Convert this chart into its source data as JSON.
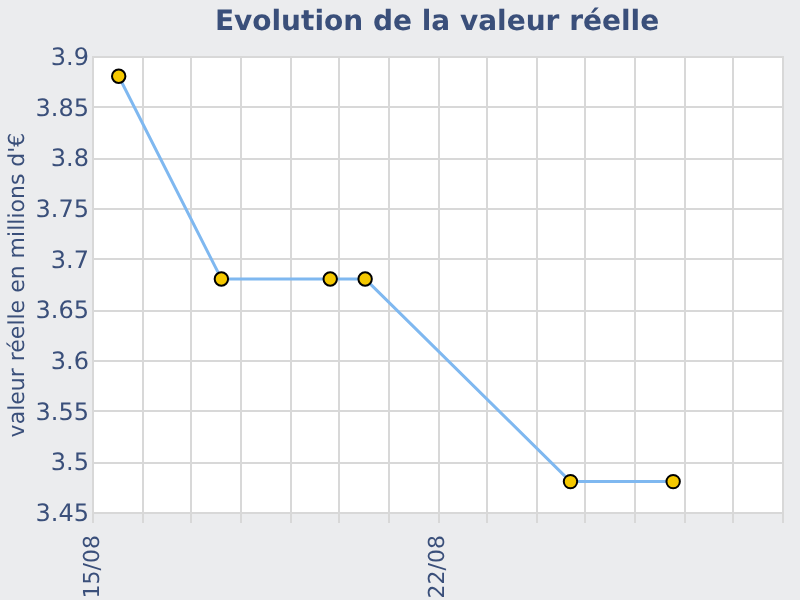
{
  "chart_data": {
    "type": "line",
    "title": "Evolution de la valeur réelle",
    "ylabel": "valeur réelle en millions d'€",
    "x": [
      "--08-15T13:00",
      "--08-17T15:00",
      "--08-19T20:00",
      "--08-20T13:00",
      "--08-24T17:00",
      "--08-26T19:00"
    ],
    "series": [
      {
        "color": "#7fb8f0",
        "values": [
          3.88,
          3.68,
          3.68,
          3.68,
          3.48,
          3.48
        ]
      }
    ],
    "xlim": [
      "--08-15",
      "--08-29"
    ],
    "xticks": [
      {
        "value": "--08-15",
        "label": "15/08"
      },
      {
        "value": "--08-16",
        "label": null
      },
      {
        "value": "--08-17",
        "label": null
      },
      {
        "value": "--08-18",
        "label": null
      },
      {
        "value": "--08-19",
        "label": null
      },
      {
        "value": "--08-20",
        "label": null
      },
      {
        "value": "--08-21",
        "label": null
      },
      {
        "value": "--08-22",
        "label": "22/08"
      },
      {
        "value": "--08-23",
        "label": null
      },
      {
        "value": "--08-24",
        "label": null
      },
      {
        "value": "--08-25",
        "label": null
      },
      {
        "value": "--08-26",
        "label": null
      },
      {
        "value": "--08-27",
        "label": null
      },
      {
        "value": "--08-28",
        "label": null
      },
      {
        "value": "--08-29",
        "label": null
      }
    ],
    "ylim": [
      3.45,
      3.9
    ],
    "yticks": [
      3.45,
      3.5,
      3.55,
      3.6,
      3.65,
      3.7,
      3.75,
      3.8,
      3.85,
      3.9
    ],
    "grid": true,
    "marker": "circle",
    "line_style": "solid"
  }
}
